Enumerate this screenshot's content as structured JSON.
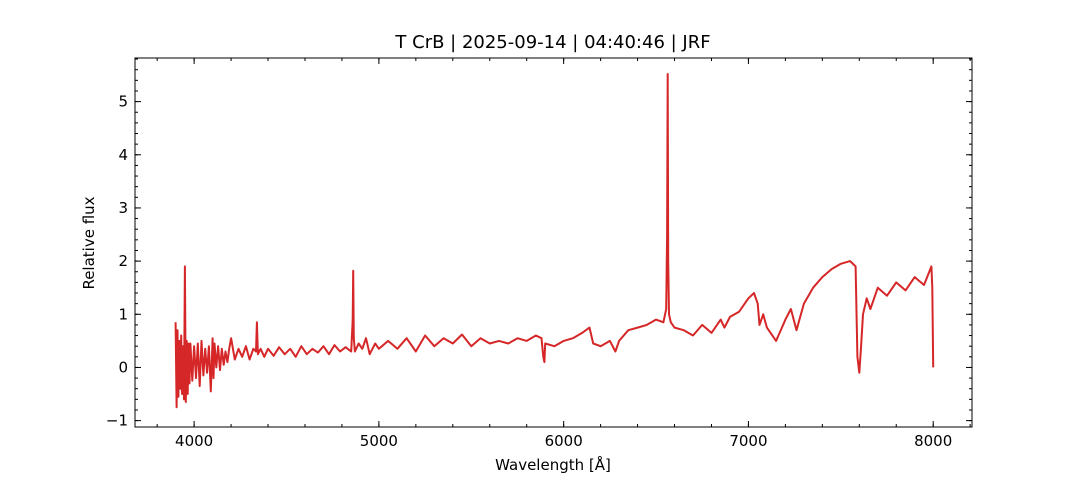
{
  "chart_data": {
    "type": "line",
    "title": "T CrB | 2025-09-14 | 04:40:46 | JRF",
    "xlabel": "Wavelength [Å]",
    "ylabel": "Relative flux",
    "xlim": [
      3680,
      8210
    ],
    "ylim": [
      -1.12,
      5.82
    ],
    "x_ticks": [
      4000,
      5000,
      6000,
      7000,
      8000
    ],
    "y_ticks": [
      -1,
      0,
      1,
      2,
      3,
      4,
      5
    ],
    "x_ticks_minor_step": 200,
    "y_ticks_minor_step": 0.2,
    "grid": false,
    "legend": "none",
    "series": [
      {
        "color": "#d62728",
        "x": [
          3900,
          3905,
          3910,
          3915,
          3920,
          3925,
          3930,
          3935,
          3940,
          3945,
          3950,
          3955,
          3960,
          3965,
          3970,
          3975,
          3980,
          3990,
          4000,
          4010,
          4020,
          4030,
          4040,
          4050,
          4060,
          4070,
          4080,
          4090,
          4100,
          4102,
          4105,
          4110,
          4120,
          4130,
          4140,
          4150,
          4160,
          4170,
          4180,
          4190,
          4200,
          4220,
          4240,
          4260,
          4280,
          4300,
          4320,
          4335,
          4340,
          4345,
          4360,
          4380,
          4400,
          4430,
          4460,
          4490,
          4520,
          4550,
          4580,
          4610,
          4640,
          4670,
          4700,
          4730,
          4760,
          4790,
          4820,
          4850,
          4858,
          4861,
          4864,
          4870,
          4890,
          4910,
          4930,
          4950,
          4980,
          5000,
          5050,
          5100,
          5150,
          5200,
          5250,
          5300,
          5350,
          5400,
          5450,
          5500,
          5550,
          5600,
          5650,
          5700,
          5750,
          5800,
          5850,
          5880,
          5890,
          5896,
          5900,
          5950,
          6000,
          6050,
          6100,
          6140,
          6160,
          6200,
          6250,
          6280,
          6300,
          6350,
          6400,
          6450,
          6500,
          6540,
          6555,
          6560,
          6563,
          6566,
          6570,
          6580,
          6600,
          6650,
          6700,
          6750,
          6800,
          6850,
          6870,
          6900,
          6950,
          7000,
          7030,
          7050,
          7060,
          7080,
          7100,
          7150,
          7200,
          7230,
          7260,
          7300,
          7350,
          7400,
          7450,
          7500,
          7550,
          7580,
          7590,
          7600,
          7610,
          7620,
          7640,
          7660,
          7700,
          7750,
          7800,
          7850,
          7900,
          7950,
          7990,
          7995,
          8000
        ],
        "y": [
          0.85,
          -0.75,
          0.7,
          -0.55,
          0.5,
          -0.4,
          0.6,
          -0.5,
          0.4,
          -0.6,
          1.9,
          -0.65,
          0.5,
          -0.5,
          0.45,
          -0.3,
          0.45,
          -0.25,
          0.4,
          -0.2,
          0.45,
          -0.35,
          0.5,
          -0.15,
          0.35,
          -0.1,
          0.4,
          -0.45,
          0.55,
          0.1,
          -0.2,
          0.45,
          0.0,
          0.4,
          -0.05,
          0.35,
          0.05,
          0.3,
          0.1,
          0.35,
          0.55,
          0.15,
          0.35,
          0.2,
          0.4,
          0.15,
          0.35,
          0.3,
          0.85,
          0.25,
          0.35,
          0.2,
          0.35,
          0.22,
          0.38,
          0.25,
          0.35,
          0.2,
          0.4,
          0.25,
          0.35,
          0.28,
          0.4,
          0.25,
          0.42,
          0.3,
          0.38,
          0.3,
          0.9,
          1.82,
          0.55,
          0.3,
          0.45,
          0.35,
          0.55,
          0.25,
          0.45,
          0.35,
          0.5,
          0.35,
          0.55,
          0.3,
          0.6,
          0.4,
          0.55,
          0.45,
          0.62,
          0.4,
          0.55,
          0.45,
          0.5,
          0.45,
          0.55,
          0.5,
          0.6,
          0.55,
          0.2,
          0.1,
          0.45,
          0.4,
          0.5,
          0.55,
          0.65,
          0.75,
          0.45,
          0.4,
          0.5,
          0.3,
          0.5,
          0.7,
          0.75,
          0.8,
          0.9,
          0.85,
          1.1,
          2.5,
          5.52,
          2.0,
          1.0,
          0.85,
          0.75,
          0.7,
          0.6,
          0.8,
          0.65,
          0.9,
          0.75,
          0.95,
          1.05,
          1.3,
          1.4,
          1.2,
          0.8,
          1.0,
          0.75,
          0.5,
          0.9,
          1.1,
          0.7,
          1.2,
          1.5,
          1.7,
          1.85,
          1.95,
          2.0,
          1.9,
          0.2,
          -0.1,
          0.4,
          1.0,
          1.3,
          1.1,
          1.5,
          1.35,
          1.6,
          1.45,
          1.7,
          1.55,
          1.9,
          1.5,
          0.0
        ]
      }
    ]
  }
}
